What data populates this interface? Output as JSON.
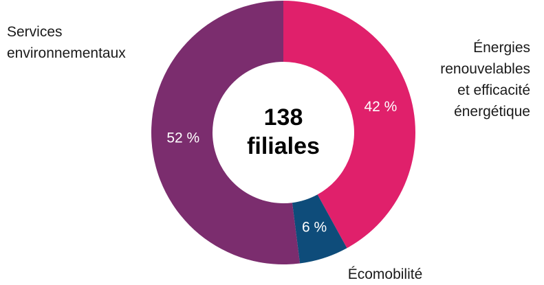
{
  "chart_data": {
    "type": "donut",
    "center_text": "138\nfiliales",
    "categories": [
      "Énergies\nrenouvelables\net efficacité\nénergétique",
      "Écomobilité",
      "Services\nenvironnementaux"
    ],
    "values": [
      42,
      6,
      52
    ],
    "value_labels": [
      "42 %",
      "6 %",
      "52 %"
    ],
    "colors": [
      "#e0206b",
      "#0e4c7a",
      "#7b2d6e"
    ]
  }
}
